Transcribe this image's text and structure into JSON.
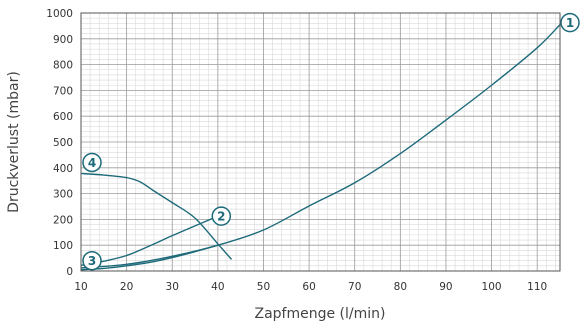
{
  "chart_data": {
    "type": "line",
    "title": "",
    "xlabel": "Zapfmenge (l/min)",
    "ylabel": "Druckverlust (mbar)",
    "xlim": [
      10,
      115
    ],
    "ylim": [
      0,
      1000
    ],
    "x_ticks": [
      10,
      20,
      30,
      40,
      50,
      60,
      70,
      80,
      90,
      100,
      110
    ],
    "y_ticks": [
      0,
      100,
      200,
      300,
      400,
      500,
      600,
      700,
      800,
      900,
      1000
    ],
    "grid": true,
    "line_color": "#1d6a7a",
    "series": [
      {
        "name": "1",
        "x": [
          10,
          20,
          30,
          40,
          50,
          60,
          70,
          80,
          90,
          100,
          110,
          115
        ],
        "y": [
          12,
          26,
          57,
          100,
          159,
          252,
          342,
          455,
          585,
          720,
          865,
          955
        ]
      },
      {
        "name": "2",
        "x": [
          10,
          15,
          20,
          25,
          30,
          35,
          39
        ],
        "y": [
          22,
          38,
          60,
          97,
          137,
          175,
          205
        ]
      },
      {
        "name": "3",
        "x": [
          10,
          15,
          20,
          25,
          30,
          35,
          40
        ],
        "y": [
          5,
          10,
          20,
          33,
          52,
          75,
          100
        ]
      },
      {
        "name": "4",
        "x": [
          10,
          15,
          20,
          23,
          26,
          30,
          35,
          40,
          43
        ],
        "y": [
          378,
          372,
          362,
          345,
          310,
          265,
          205,
          105,
          45
        ]
      }
    ]
  }
}
